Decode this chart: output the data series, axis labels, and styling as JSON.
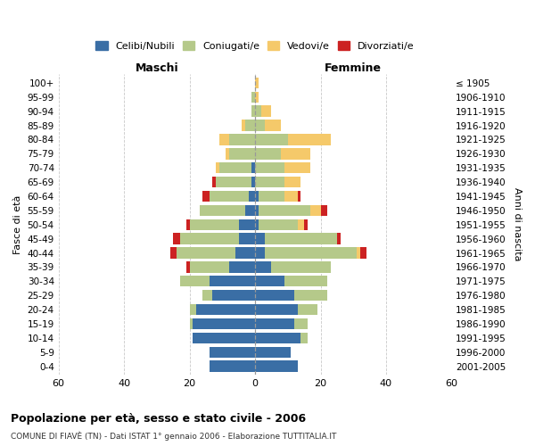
{
  "age_groups": [
    "0-4",
    "5-9",
    "10-14",
    "15-19",
    "20-24",
    "25-29",
    "30-34",
    "35-39",
    "40-44",
    "45-49",
    "50-54",
    "55-59",
    "60-64",
    "65-69",
    "70-74",
    "75-79",
    "80-84",
    "85-89",
    "90-94",
    "95-99",
    "100+"
  ],
  "birth_years": [
    "2001-2005",
    "1996-2000",
    "1991-1995",
    "1986-1990",
    "1981-1985",
    "1976-1980",
    "1971-1975",
    "1966-1970",
    "1961-1965",
    "1956-1960",
    "1951-1955",
    "1946-1950",
    "1941-1945",
    "1936-1940",
    "1931-1935",
    "1926-1930",
    "1921-1925",
    "1916-1920",
    "1911-1915",
    "1906-1910",
    "≤ 1905"
  ],
  "male": {
    "celibe": [
      14,
      14,
      19,
      19,
      18,
      13,
      14,
      8,
      6,
      5,
      5,
      3,
      2,
      1,
      1,
      0,
      0,
      0,
      0,
      0,
      0
    ],
    "coniugato": [
      0,
      0,
      0,
      1,
      2,
      3,
      9,
      12,
      18,
      18,
      15,
      14,
      12,
      11,
      10,
      8,
      8,
      3,
      1,
      1,
      0
    ],
    "vedovo": [
      0,
      0,
      0,
      0,
      0,
      0,
      0,
      0,
      0,
      0,
      0,
      0,
      0,
      0,
      1,
      1,
      3,
      1,
      0,
      0,
      0
    ],
    "divorziato": [
      0,
      0,
      0,
      0,
      0,
      0,
      0,
      1,
      2,
      2,
      1,
      0,
      2,
      1,
      0,
      0,
      0,
      0,
      0,
      0,
      0
    ]
  },
  "female": {
    "nubile": [
      13,
      11,
      14,
      12,
      13,
      12,
      9,
      5,
      3,
      3,
      1,
      1,
      1,
      0,
      0,
      0,
      0,
      0,
      0,
      0,
      0
    ],
    "coniugata": [
      0,
      0,
      2,
      4,
      6,
      10,
      13,
      18,
      28,
      22,
      12,
      16,
      8,
      9,
      9,
      8,
      10,
      3,
      2,
      0,
      0
    ],
    "vedova": [
      0,
      0,
      0,
      0,
      0,
      0,
      0,
      0,
      1,
      0,
      2,
      3,
      4,
      5,
      8,
      9,
      13,
      5,
      3,
      1,
      1
    ],
    "divorziata": [
      0,
      0,
      0,
      0,
      0,
      0,
      0,
      0,
      2,
      1,
      1,
      2,
      1,
      0,
      0,
      0,
      0,
      0,
      0,
      0,
      0
    ]
  },
  "colors": {
    "celibe": "#3a6ea5",
    "coniugato": "#b5c98a",
    "vedovo": "#f5c96a",
    "divorziato": "#cc2222"
  },
  "title_main": "Popolazione per età, sesso e stato civile - 2006",
  "title_sub": "COMUNE DI FIAVÈ (TN) - Dati ISTAT 1° gennaio 2006 - Elaborazione TUTTITALIA.IT",
  "xlim": 60,
  "legend_labels": [
    "Celibi/Nubili",
    "Coniugati/e",
    "Vedovi/e",
    "Divorziati/e"
  ],
  "xlabel_left": "Maschi",
  "xlabel_right": "Femmine",
  "ylabel_left": "Fasce di età",
  "ylabel_right": "Anni di nascita"
}
